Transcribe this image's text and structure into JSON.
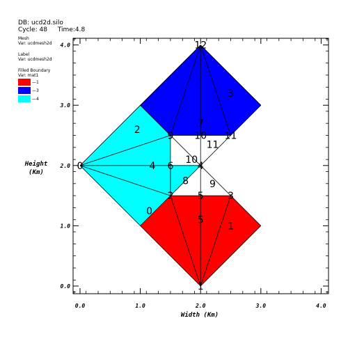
{
  "header": {
    "db": "DB: ucd2d.silo",
    "cycle": "Cycle: 48",
    "time": "Time:4.8"
  },
  "legend": {
    "mesh_title": "Mesh",
    "mesh_var": "Var: ucdmesh2d",
    "label_title": "Label",
    "label_var": "Var: ucdmesh2d",
    "boundary_title": "Filled Boundary",
    "boundary_var": "Var: mat1",
    "entries": [
      {
        "label": "1",
        "color": "#ff0000"
      },
      {
        "label": "3",
        "color": "#0000ff"
      },
      {
        "label": "4",
        "color": "#00ffff"
      }
    ]
  },
  "chart_data": {
    "type": "mesh",
    "xlabel": "Width (Km)",
    "ylabel_line1": "Height",
    "ylabel_line2": "(Km)",
    "xlim": [
      0,
      4
    ],
    "ylim": [
      0,
      4.2
    ],
    "xticks": [
      {
        "v": 0,
        "label": "0.0"
      },
      {
        "v": 1,
        "label": "1.0"
      },
      {
        "v": 2,
        "label": "2.0"
      },
      {
        "v": 3,
        "label": "3.0"
      },
      {
        "v": 4,
        "label": "4.0"
      }
    ],
    "yticks": [
      {
        "v": 0,
        "label": "0.0"
      },
      {
        "v": 1,
        "label": "1.0"
      },
      {
        "v": 2,
        "label": "2.0"
      },
      {
        "v": 3,
        "label": "3.0"
      },
      {
        "v": 4,
        "label": "4.0"
      }
    ],
    "regions": [
      {
        "material": "1",
        "color": "#ff0000",
        "points": [
          [
            1,
            1
          ],
          [
            1.5,
            1.5
          ],
          [
            2,
            1.5
          ],
          [
            2.5,
            1.5
          ],
          [
            2,
            2
          ],
          [
            3,
            1
          ],
          [
            2,
            0
          ]
        ]
      },
      {
        "material": "3",
        "color": "#0000ff",
        "points": [
          [
            1,
            3
          ],
          [
            1.5,
            2.5
          ],
          [
            2,
            2.5
          ],
          [
            2.5,
            2.5
          ],
          [
            2,
            2
          ],
          [
            3,
            3
          ],
          [
            2,
            4
          ]
        ]
      },
      {
        "material": "4",
        "color": "#00ffff",
        "points": [
          [
            0,
            2
          ],
          [
            1,
            3
          ],
          [
            1.5,
            2.5
          ],
          [
            1.5,
            2
          ],
          [
            2,
            2
          ],
          [
            1.5,
            1.5
          ],
          [
            1,
            1
          ]
        ]
      }
    ],
    "edges": [
      [
        [
          1,
          1
        ],
        [
          2,
          0
        ]
      ],
      [
        [
          2,
          0
        ],
        [
          3,
          1
        ]
      ],
      [
        [
          3,
          1
        ],
        [
          2,
          2
        ]
      ],
      [
        [
          2,
          2
        ],
        [
          1.5,
          1.5
        ]
      ],
      [
        [
          1.5,
          1.5
        ],
        [
          1,
          1
        ]
      ],
      [
        [
          1.5,
          1.5
        ],
        [
          2.5,
          1.5
        ]
      ],
      [
        [
          2,
          1.5
        ],
        [
          2,
          0
        ]
      ],
      [
        [
          2.5,
          1.5
        ],
        [
          2,
          0
        ]
      ],
      [
        [
          1.5,
          1.5
        ],
        [
          2,
          0
        ]
      ],
      [
        [
          2,
          2
        ],
        [
          2,
          1.5
        ]
      ],
      [
        [
          2,
          2
        ],
        [
          1.5,
          2.5
        ]
      ],
      [
        [
          1.5,
          2.5
        ],
        [
          2.5,
          2.5
        ]
      ],
      [
        [
          2.5,
          2.5
        ],
        [
          2,
          4
        ]
      ],
      [
        [
          2,
          4
        ],
        [
          1.5,
          2.5
        ]
      ],
      [
        [
          2,
          2.5
        ],
        [
          2,
          4
        ]
      ],
      [
        [
          2,
          2
        ],
        [
          2,
          2.5
        ]
      ],
      [
        [
          2,
          2
        ],
        [
          2.5,
          2.5
        ]
      ],
      [
        [
          2.5,
          2.5
        ],
        [
          3,
          3
        ]
      ],
      [
        [
          3,
          3
        ],
        [
          2,
          4
        ]
      ],
      [
        [
          2,
          4
        ],
        [
          1,
          3
        ]
      ],
      [
        [
          0,
          2
        ],
        [
          1,
          3
        ]
      ],
      [
        [
          1,
          3
        ],
        [
          1.5,
          2.5
        ]
      ],
      [
        [
          0,
          2
        ],
        [
          1,
          1
        ]
      ],
      [
        [
          0,
          2
        ],
        [
          1.5,
          2.5
        ]
      ],
      [
        [
          0,
          2
        ],
        [
          1.5,
          2
        ]
      ],
      [
        [
          0,
          2
        ],
        [
          1.5,
          1.5
        ]
      ],
      [
        [
          1.5,
          2
        ],
        [
          2,
          2
        ]
      ],
      [
        [
          1.5,
          2.5
        ],
        [
          1.5,
          1.5
        ]
      ]
    ],
    "labels": [
      {
        "text": "0",
        "x": 1.15,
        "y": 1.25
      },
      {
        "text": "1",
        "x": 2.5,
        "y": 1.0
      },
      {
        "text": "2",
        "x": 0.95,
        "y": 2.6
      },
      {
        "text": "3",
        "x": 2.5,
        "y": 3.2
      },
      {
        "text": "4",
        "x": 1.2,
        "y": 2.0
      },
      {
        "text": "5",
        "x": 2.0,
        "y": 1.1
      },
      {
        "text": "6",
        "x": 1.5,
        "y": 2.0
      },
      {
        "text": "7",
        "x": 2.0,
        "y": 2.7
      },
      {
        "text": "8",
        "x": 1.75,
        "y": 1.75
      },
      {
        "text": "9",
        "x": 2.2,
        "y": 1.7
      },
      {
        "text": "10",
        "x": 1.85,
        "y": 2.1
      },
      {
        "text": "11",
        "x": 2.2,
        "y": 2.35
      },
      {
        "text": "0",
        "x": 0.0,
        "y": 2.0
      },
      {
        "text": "2",
        "x": 1.5,
        "y": 1.5
      },
      {
        "text": "5",
        "x": 2.0,
        "y": 1.5
      },
      {
        "text": "3",
        "x": 2.5,
        "y": 1.5
      },
      {
        "text": "9",
        "x": 1.5,
        "y": 2.5
      },
      {
        "text": "10",
        "x": 2.0,
        "y": 2.5
      },
      {
        "text": "11",
        "x": 2.5,
        "y": 2.5
      },
      {
        "text": "12",
        "x": 2.0,
        "y": 4.0
      },
      {
        "text": "1",
        "x": 2.0,
        "y": 0.0
      },
      {
        "text": "4",
        "x": 2.0,
        "y": 2.0
      }
    ]
  }
}
